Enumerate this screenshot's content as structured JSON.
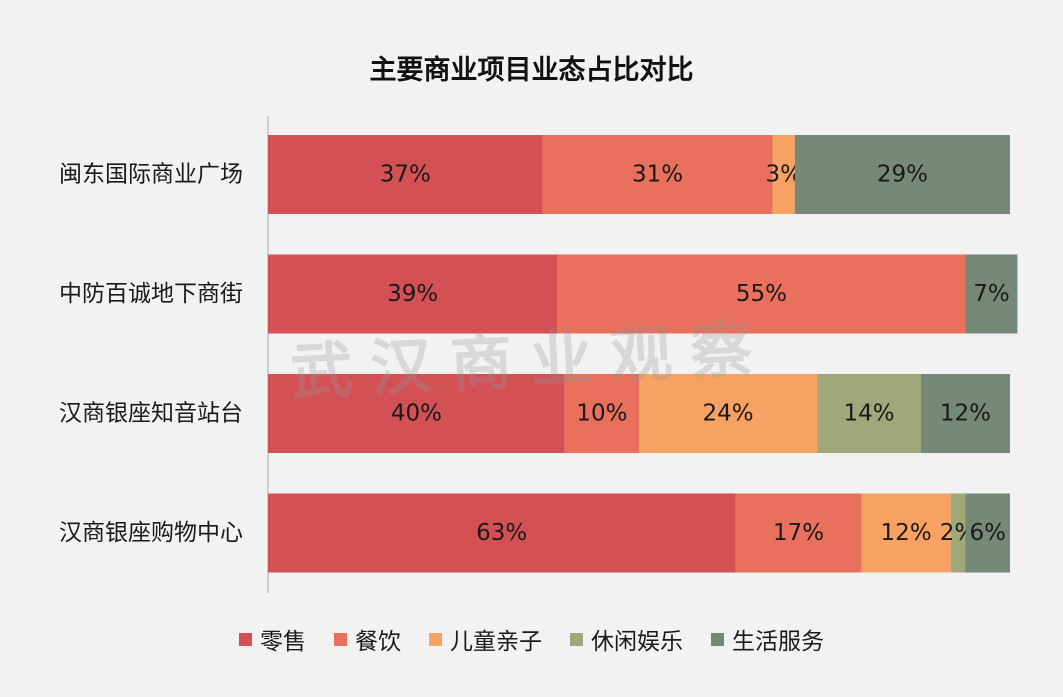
{
  "chart_data": {
    "type": "bar",
    "orientation": "horizontal",
    "stacked": true,
    "title": "主要商业项目业态占比对比",
    "categories": [
      "闽东国际商业广场",
      "中防百诚地下商街",
      "汉商银座知音站台",
      "汉商银座购物中心"
    ],
    "series": [
      {
        "name": "零售",
        "color": "#d35155",
        "values": [
          37,
          39,
          40,
          63
        ],
        "labels": [
          "37%",
          "39%",
          "40%",
          "63%"
        ]
      },
      {
        "name": "餐饮",
        "color": "#e8705c",
        "values": [
          31,
          55,
          10,
          17
        ],
        "labels": [
          "31%",
          "55%",
          "10%",
          "17%"
        ]
      },
      {
        "name": "儿童亲子",
        "color": "#f7a262",
        "values": [
          3,
          0,
          24,
          12
        ],
        "labels": [
          "3%",
          "",
          "24%",
          "12%"
        ]
      },
      {
        "name": "休闲娱乐",
        "color": "#9ea878",
        "values": [
          0,
          0,
          14,
          2
        ],
        "labels": [
          "",
          "",
          "14%",
          "2%"
        ]
      },
      {
        "name": "生活服务",
        "color": "#768878",
        "values": [
          29,
          7,
          12,
          6
        ],
        "labels": [
          "29%",
          "7%",
          "12%",
          "6%"
        ]
      }
    ],
    "xlim": [
      0,
      100
    ],
    "grid": false,
    "legend_position": "bottom"
  },
  "watermark": "武汉商业观察"
}
